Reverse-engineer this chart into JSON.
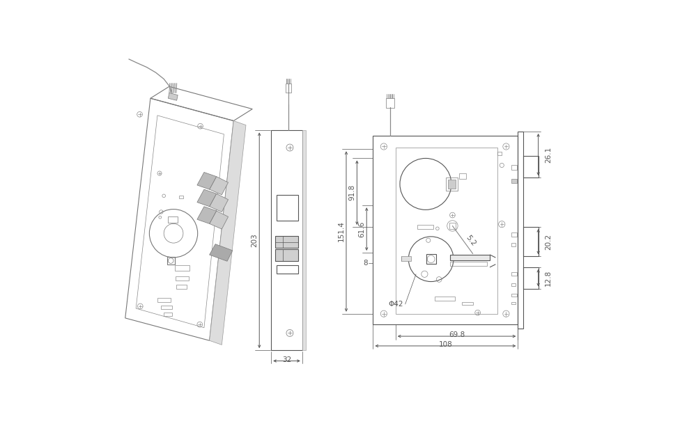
{
  "bg_color": "#ffffff",
  "lc": "#888888",
  "lcd": "#555555",
  "dc": "#555555",
  "lw": 0.8,
  "lwt": 0.5,
  "lwd": 0.6,
  "dfs": 7.5,
  "fig_width": 9.99,
  "fig_height": 6.12,
  "dims": {
    "d203": "203",
    "d32": "32",
    "d151": "151.4",
    "d91": "91.8",
    "d61": "61.6",
    "d8": "8",
    "d52": "5.2",
    "d42": "Φ42",
    "d698": "69.8",
    "d108": "108",
    "d261": "26.1",
    "d202": "20.2",
    "d128": "12.8"
  }
}
